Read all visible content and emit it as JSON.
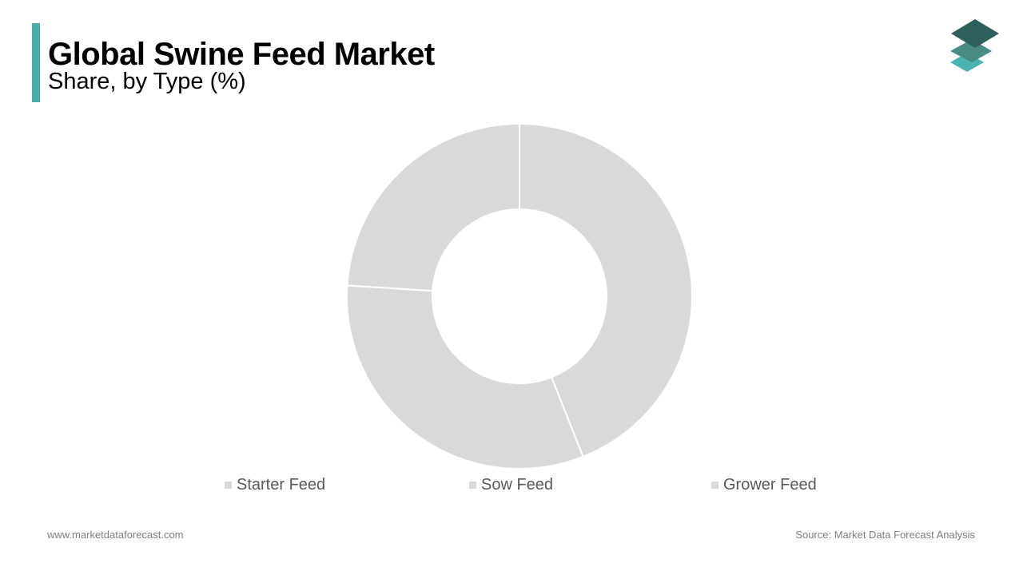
{
  "header": {
    "title": "Global Swine Feed Market",
    "subtitle": "Share, by Type (%)"
  },
  "colors": {
    "accent": "#4aacaa",
    "slice": "#d9d9d9",
    "slice_border": "#ffffff",
    "logo_dark": "#2f5f5a",
    "logo_mid": "#4a8a85",
    "logo_light": "#4ab3b0"
  },
  "icons": {
    "logo": "stacked-layers-icon"
  },
  "chart_data": {
    "type": "pie",
    "donut": true,
    "categories": [
      "Starter Feed",
      "Sow Feed",
      "Grower Feed"
    ],
    "values": [
      44,
      32,
      24
    ],
    "unit": "%",
    "legend_position": "bottom"
  },
  "footer": {
    "website": "www.marketdataforecast.com",
    "source": "Source: Market Data Forecast Analysis"
  }
}
